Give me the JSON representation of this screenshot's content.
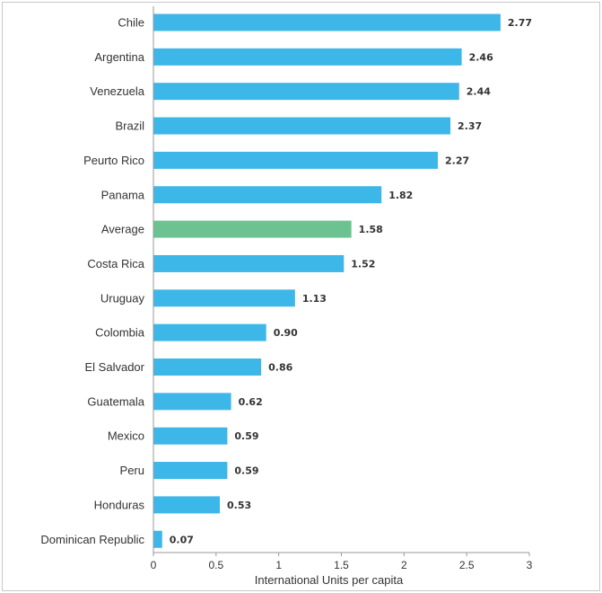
{
  "chart_data": {
    "type": "bar",
    "orientation": "horizontal",
    "categories": [
      "Chile",
      "Argentina",
      "Venezuela",
      "Brazil",
      "Peurto Rico",
      "Panama",
      "Average",
      "Costa Rica",
      "Uruguay",
      "Colombia",
      "El Salvador",
      "Guatemala",
      "Mexico",
      "Peru",
      "Honduras",
      "Dominican Republic"
    ],
    "values": [
      2.77,
      2.46,
      2.44,
      2.37,
      2.27,
      1.82,
      1.58,
      1.52,
      1.13,
      0.9,
      0.86,
      0.62,
      0.59,
      0.59,
      0.53,
      0.07
    ],
    "value_labels": [
      "2.77",
      "2.46",
      "2.44",
      "2.37",
      "2.27",
      "1.82",
      "1.58",
      "1.52",
      "1.13",
      "0.90",
      "0.86",
      "0.62",
      "0.59",
      "0.59",
      "0.53",
      "0.07"
    ],
    "highlight_category": "Average",
    "xlabel": "International Units per capita",
    "ylabel": "",
    "title": "",
    "xlim": [
      0,
      3
    ],
    "xticks": [
      0,
      0.5,
      1,
      1.5,
      2,
      2.5,
      3
    ],
    "xtick_labels": [
      "0",
      "0.5",
      "1",
      "1.5",
      "2",
      "2.5",
      "3"
    ],
    "grid": false,
    "legend": "none",
    "colors": {
      "bar": "#3db6e8",
      "highlight": "#6cc391",
      "axis": "#999999",
      "text": "#333333"
    }
  }
}
